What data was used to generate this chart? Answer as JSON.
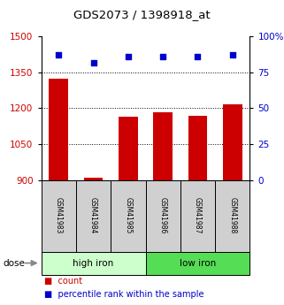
{
  "title": "GDS2073 / 1398918_at",
  "samples": [
    "GSM41983",
    "GSM41984",
    "GSM41985",
    "GSM41986",
    "GSM41987",
    "GSM41988"
  ],
  "bar_values": [
    1325,
    910,
    1165,
    1185,
    1170,
    1215
  ],
  "percentile_values": [
    87,
    82,
    86,
    86,
    86,
    87
  ],
  "bar_color": "#cc0000",
  "percentile_color": "#0000cc",
  "ylim_left": [
    900,
    1500
  ],
  "ylim_right": [
    0,
    100
  ],
  "yticks_left": [
    900,
    1050,
    1200,
    1350,
    1500
  ],
  "ytick_labels_left": [
    "900",
    "1050",
    "1200",
    "1350",
    "1500"
  ],
  "yticks_right": [
    0,
    25,
    50,
    75,
    100
  ],
  "ytick_labels_right": [
    "0",
    "25",
    "50",
    "75",
    "100%"
  ],
  "grid_values": [
    1050,
    1200,
    1350
  ],
  "group_high_label": "high iron",
  "group_low_label": "low iron",
  "group_high_color": "#ccffcc",
  "group_low_color": "#55dd55",
  "dose_label": "dose",
  "legend_count_label": "count",
  "legend_percentile_label": "percentile rank within the sample",
  "background_color": "#ffffff",
  "tick_label_color_left": "#cc0000",
  "tick_label_color_right": "#0000cc",
  "sample_box_color": "#d0d0d0",
  "title_fontsize": 9.5,
  "axis_fontsize": 7.5,
  "sample_fontsize": 5.5,
  "group_fontsize": 7.5,
  "legend_fontsize": 7
}
